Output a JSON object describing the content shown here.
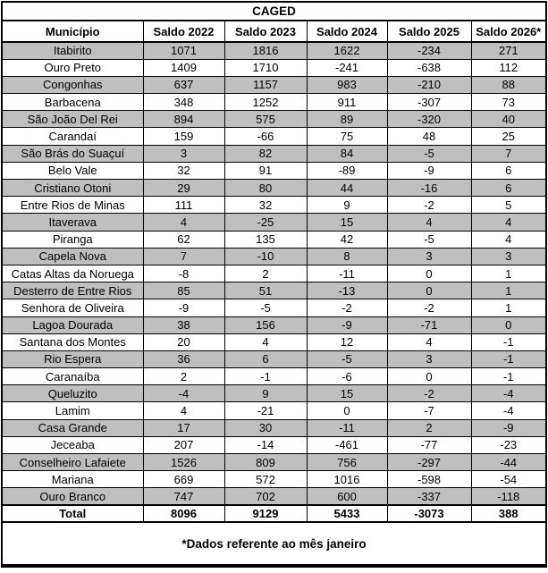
{
  "colors": {
    "background": "#ffffff",
    "zebra_row": "#BFBFBF",
    "border": "#000000",
    "text": "#000000"
  },
  "table": {
    "title": "CAGED",
    "columns": [
      "Município",
      "Saldo 2022",
      "Saldo 2023",
      "Saldo 2024",
      "Saldo 2025",
      "Saldo 2026*"
    ],
    "rows": [
      [
        "Itabirito",
        "1071",
        "1816",
        "1622",
        "-234",
        "271"
      ],
      [
        "Ouro Preto",
        "1409",
        "1710",
        "-241",
        "-638",
        "112"
      ],
      [
        "Congonhas",
        "637",
        "1157",
        "983",
        "-210",
        "88"
      ],
      [
        "Barbacena",
        "348",
        "1252",
        "911",
        "-307",
        "73"
      ],
      [
        "São João Del Rei",
        "894",
        "575",
        "89",
        "-320",
        "40"
      ],
      [
        "Carandaí",
        "159",
        "-66",
        "75",
        "48",
        "25"
      ],
      [
        "São Brás do Suaçuí",
        "3",
        "82",
        "84",
        "-5",
        "7"
      ],
      [
        "Belo Vale",
        "32",
        "91",
        "-89",
        "-9",
        "6"
      ],
      [
        "Cristiano Otoni",
        "29",
        "80",
        "44",
        "-16",
        "6"
      ],
      [
        "Entre Rios de Minas",
        "111",
        "32",
        "9",
        "-2",
        "5"
      ],
      [
        "Itaverava",
        "4",
        "-25",
        "15",
        "4",
        "4"
      ],
      [
        "Piranga",
        "62",
        "135",
        "42",
        "-5",
        "4"
      ],
      [
        "Capela Nova",
        "7",
        "-10",
        "8",
        "3",
        "3"
      ],
      [
        "Catas Altas da Noruega",
        "-8",
        "2",
        "-11",
        "0",
        "1"
      ],
      [
        "Desterro de Entre Rios",
        "85",
        "51",
        "-13",
        "0",
        "1"
      ],
      [
        "Senhora de Oliveira",
        "-9",
        "-5",
        "-2",
        "-2",
        "1"
      ],
      [
        "Lagoa Dourada",
        "38",
        "156",
        "-9",
        "-71",
        "0"
      ],
      [
        "Santana dos Montes",
        "20",
        "4",
        "12",
        "4",
        "-1"
      ],
      [
        "Rio Espera",
        "36",
        "6",
        "-5",
        "3",
        "-1"
      ],
      [
        "Caranaíba",
        "2",
        "-1",
        "-6",
        "0",
        "-1"
      ],
      [
        "Queluzito",
        "-4",
        "9",
        "15",
        "-2",
        "-4"
      ],
      [
        "Lamim",
        "4",
        "-21",
        "0",
        "-7",
        "-4"
      ],
      [
        "Casa Grande",
        "17",
        "30",
        "-11",
        "2",
        "-9"
      ],
      [
        "Jeceaba",
        "207",
        "-14",
        "-461",
        "-77",
        "-23"
      ],
      [
        "Conselheiro Lafaiete",
        "1526",
        "809",
        "756",
        "-297",
        "-44"
      ],
      [
        "Mariana",
        "669",
        "572",
        "1016",
        "-598",
        "-54"
      ],
      [
        "Ouro Branco",
        "747",
        "702",
        "600",
        "-337",
        "-118"
      ]
    ],
    "total_row": [
      "Total",
      "8096",
      "9129",
      "5433",
      "-3073",
      "388"
    ],
    "footnote": "*Dados referente ao mês janeiro"
  }
}
